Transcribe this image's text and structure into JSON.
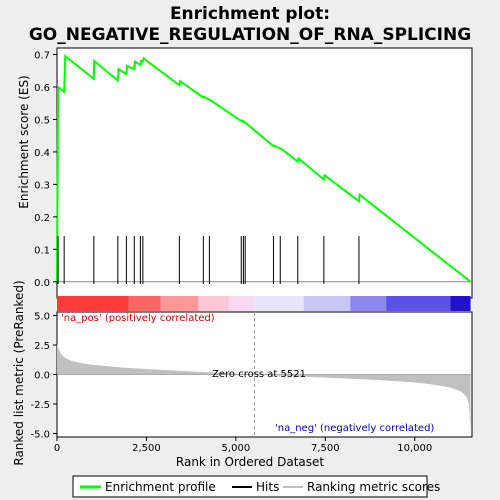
{
  "figure": {
    "title_line1": "Enrichment plot:",
    "title_line2": "GO_NEGATIVE_REGULATION_OF_RNA_SPLICING",
    "background": "#eeeeee",
    "panel_background": "#ffffff"
  },
  "chart_data": [
    {
      "panel": "enrichment",
      "type": "line",
      "ylabel": "Enrichment score (ES)",
      "ylim": [
        -0.05,
        0.72
      ],
      "y_ticks": [
        0.0,
        0.1,
        0.2,
        0.3,
        0.4,
        0.5,
        0.6,
        0.7
      ],
      "y_tick_labels": [
        "0.0",
        "0.1",
        "0.2",
        "0.3",
        "0.4",
        "0.5",
        "0.6",
        "0.7"
      ],
      "xlim": [
        0,
        11600
      ],
      "zero_line": true,
      "series": [
        {
          "color": "#00ff00",
          "x": [
            0,
            30,
            200,
            230,
            1030,
            1040,
            1700,
            1720,
            1940,
            1960,
            2160,
            2180,
            2330,
            2350,
            2400,
            2420,
            3420,
            3440,
            4090,
            4110,
            4260,
            4280,
            5150,
            5160,
            5210,
            5220,
            5260,
            5270,
            6050,
            6070,
            6240,
            6260,
            6730,
            6750,
            7460,
            7480,
            8440,
            8460,
            11560
          ],
          "y": [
            0.0,
            0.6,
            0.585,
            0.695,
            0.625,
            0.68,
            0.62,
            0.655,
            0.64,
            0.665,
            0.655,
            0.678,
            0.668,
            0.68,
            0.678,
            0.688,
            0.605,
            0.618,
            0.568,
            0.57,
            0.56,
            0.56,
            0.495,
            0.497,
            0.493,
            0.494,
            0.49,
            0.49,
            0.418,
            0.42,
            0.41,
            0.41,
            0.37,
            0.38,
            0.315,
            0.328,
            0.248,
            0.268,
            0.0
          ]
        }
      ]
    },
    {
      "panel": "hits",
      "type": "scatter",
      "hits_x": [
        30,
        200,
        1030,
        1700,
        1940,
        2160,
        2330,
        2400,
        3420,
        4090,
        4260,
        5150,
        5210,
        5260,
        6050,
        6240,
        6730,
        7460,
        8440
      ],
      "hit_color": "#000000"
    },
    {
      "panel": "ranking_bar",
      "type": "heatmap",
      "segments": [
        {
          "from": 0,
          "to": 2000,
          "color": "#ff3b3b"
        },
        {
          "from": 2000,
          "to": 2900,
          "color": "#ff6464"
        },
        {
          "from": 2900,
          "to": 3950,
          "color": "#ff9898"
        },
        {
          "from": 3950,
          "to": 4800,
          "color": "#ffc8d8"
        },
        {
          "from": 4800,
          "to": 5521,
          "color": "#f8d8f2"
        },
        {
          "from": 5521,
          "to": 6900,
          "color": "#e8e4fb"
        },
        {
          "from": 6900,
          "to": 8200,
          "color": "#c9c6f6"
        },
        {
          "from": 8200,
          "to": 9200,
          "color": "#8c88f0"
        },
        {
          "from": 9200,
          "to": 11000,
          "color": "#5b50e8"
        },
        {
          "from": 11000,
          "to": 11560,
          "color": "#2211cc"
        }
      ]
    },
    {
      "panel": "ranked_metric",
      "type": "area",
      "ylabel": "Ranked list metric (PreRanked)",
      "xlabel": "Rank in Ordered Dataset",
      "ylim": [
        -5.3,
        5.3
      ],
      "y_ticks": [
        -5.0,
        -2.5,
        0.0,
        2.5,
        5.0
      ],
      "y_tick_labels": [
        "-5.0",
        "-2.5",
        "0.0",
        "2.5",
        "5.0"
      ],
      "xlim": [
        0,
        11600
      ],
      "x_ticks": [
        0,
        2500,
        5000,
        7500,
        10000
      ],
      "x_tick_labels": [
        "0",
        "2,500",
        "5,000",
        "7,500",
        "10,000"
      ],
      "fill_color": "#c0c0c0",
      "x": [
        0,
        40,
        100,
        200,
        400,
        700,
        1000,
        1500,
        2000,
        3000,
        4000,
        5000,
        5521,
        6000,
        7000,
        8000,
        9000,
        10000,
        10500,
        11000,
        11300,
        11450,
        11520,
        11560
      ],
      "y": [
        2.6,
        2.2,
        1.8,
        1.45,
        1.15,
        0.95,
        0.82,
        0.68,
        0.55,
        0.38,
        0.22,
        0.08,
        0.0,
        -0.07,
        -0.2,
        -0.33,
        -0.47,
        -0.68,
        -0.85,
        -1.1,
        -1.45,
        -1.9,
        -2.6,
        -4.9
      ],
      "zero_cross_label": "Zero cross at 5521",
      "zero_cross_x": 5521,
      "pos_label": "'na_pos' (positively correlated)",
      "neg_label": "'na_neg' (negatively correlated)",
      "pos_color": "#cc0000",
      "neg_color": "#0000cc"
    }
  ],
  "legend": {
    "items": [
      {
        "label": "Enrichment profile",
        "color": "#00ff00"
      },
      {
        "label": "Hits",
        "color": "#000000"
      },
      {
        "label": "Ranking metric scores",
        "color": "#c0c0c0"
      }
    ]
  }
}
